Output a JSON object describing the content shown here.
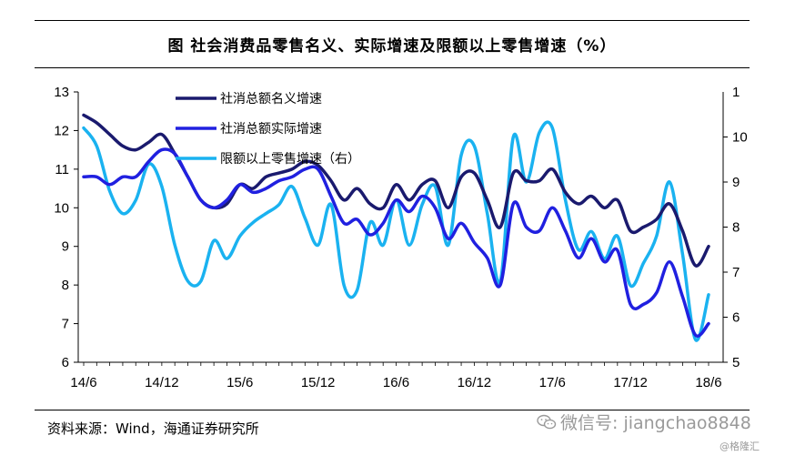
{
  "header": {
    "title": "图   社会消费品零售名义、实际增速及限额以上零售增速（%）"
  },
  "footer": {
    "source": "资料来源：Wind，海通证券研究所",
    "watermark": "微信号: jiangchao8848",
    "watermark_icon": "wechat-icon",
    "brand": "@格隆汇"
  },
  "chart_data": {
    "type": "line",
    "x_tick_labels": [
      "14/6",
      "14/12",
      "15/6",
      "15/12",
      "16/6",
      "16/12",
      "17/6",
      "17/12",
      "18/6"
    ],
    "x": [
      "2014-06",
      "2014-07",
      "2014-08",
      "2014-09",
      "2014-10",
      "2014-11",
      "2014-12",
      "2015-01",
      "2015-02",
      "2015-03",
      "2015-04",
      "2015-05",
      "2015-06",
      "2015-07",
      "2015-08",
      "2015-09",
      "2015-10",
      "2015-11",
      "2015-12",
      "2016-01",
      "2016-02",
      "2016-03",
      "2016-04",
      "2016-05",
      "2016-06",
      "2016-07",
      "2016-08",
      "2016-09",
      "2016-10",
      "2016-11",
      "2016-12",
      "2017-01",
      "2017-02",
      "2017-03",
      "2017-04",
      "2017-05",
      "2017-06",
      "2017-07",
      "2017-08",
      "2017-09",
      "2017-10",
      "2017-11",
      "2017-12",
      "2018-01",
      "2018-02",
      "2018-03",
      "2018-04",
      "2018-05",
      "2018-06"
    ],
    "y_left": {
      "min": 6,
      "max": 13,
      "ticks": [
        6,
        7,
        8,
        9,
        10,
        11,
        12,
        13
      ]
    },
    "y_right": {
      "min": 5,
      "max": 11,
      "ticks": [
        5,
        6,
        7,
        8,
        9,
        10
      ],
      "top_tick_partial": "1"
    },
    "legend_position": "top-left",
    "grid": false,
    "series": [
      {
        "name": "社消总额名义增速",
        "axis": "left",
        "color": "#1a1a6e",
        "values": [
          12.4,
          12.2,
          11.9,
          11.6,
          11.5,
          11.7,
          11.9,
          11.4,
          10.8,
          10.2,
          10.0,
          10.1,
          10.6,
          10.5,
          10.8,
          10.9,
          11.0,
          11.2,
          11.1,
          10.7,
          10.2,
          10.5,
          10.1,
          10.0,
          10.6,
          10.2,
          10.6,
          10.7,
          10.0,
          10.8,
          10.9,
          10.2,
          9.5,
          10.9,
          10.7,
          10.7,
          11.0,
          10.4,
          10.1,
          10.3,
          10.0,
          10.2,
          9.4,
          9.5,
          9.7,
          10.1,
          9.4,
          8.5,
          9.0
        ]
      },
      {
        "name": "社消总额实际增速",
        "axis": "left",
        "color": "#2020e0",
        "values": [
          10.8,
          10.8,
          10.6,
          10.8,
          10.8,
          11.2,
          11.5,
          11.4,
          10.8,
          10.2,
          10.0,
          10.2,
          10.6,
          10.4,
          10.5,
          10.7,
          10.8,
          11.0,
          11.0,
          10.3,
          9.6,
          9.7,
          9.3,
          9.6,
          10.2,
          9.9,
          10.3,
          10.0,
          9.2,
          9.6,
          9.1,
          8.7,
          8.0,
          10.1,
          9.5,
          9.4,
          10.0,
          9.4,
          8.7,
          9.2,
          8.6,
          8.9,
          7.5,
          7.5,
          7.8,
          8.6,
          7.7,
          6.7,
          7.0
        ]
      },
      {
        "name": "限额以上零售增速（右）",
        "axis": "right",
        "color": "#1ab2f0",
        "values": [
          10.2,
          9.8,
          8.8,
          8.3,
          8.6,
          9.4,
          8.9,
          7.6,
          6.8,
          6.8,
          7.7,
          7.3,
          7.8,
          8.1,
          8.3,
          8.5,
          8.9,
          8.2,
          7.6,
          8.5,
          6.7,
          6.6,
          8.1,
          7.6,
          8.6,
          7.6,
          8.5,
          8.9,
          7.6,
          9.6,
          9.8,
          8.3,
          6.8,
          10.0,
          9.0,
          10.1,
          10.2,
          8.6,
          7.5,
          7.9,
          7.3,
          7.8,
          6.7,
          7.2,
          7.8,
          9.0,
          7.4,
          5.5,
          6.5
        ]
      }
    ]
  }
}
